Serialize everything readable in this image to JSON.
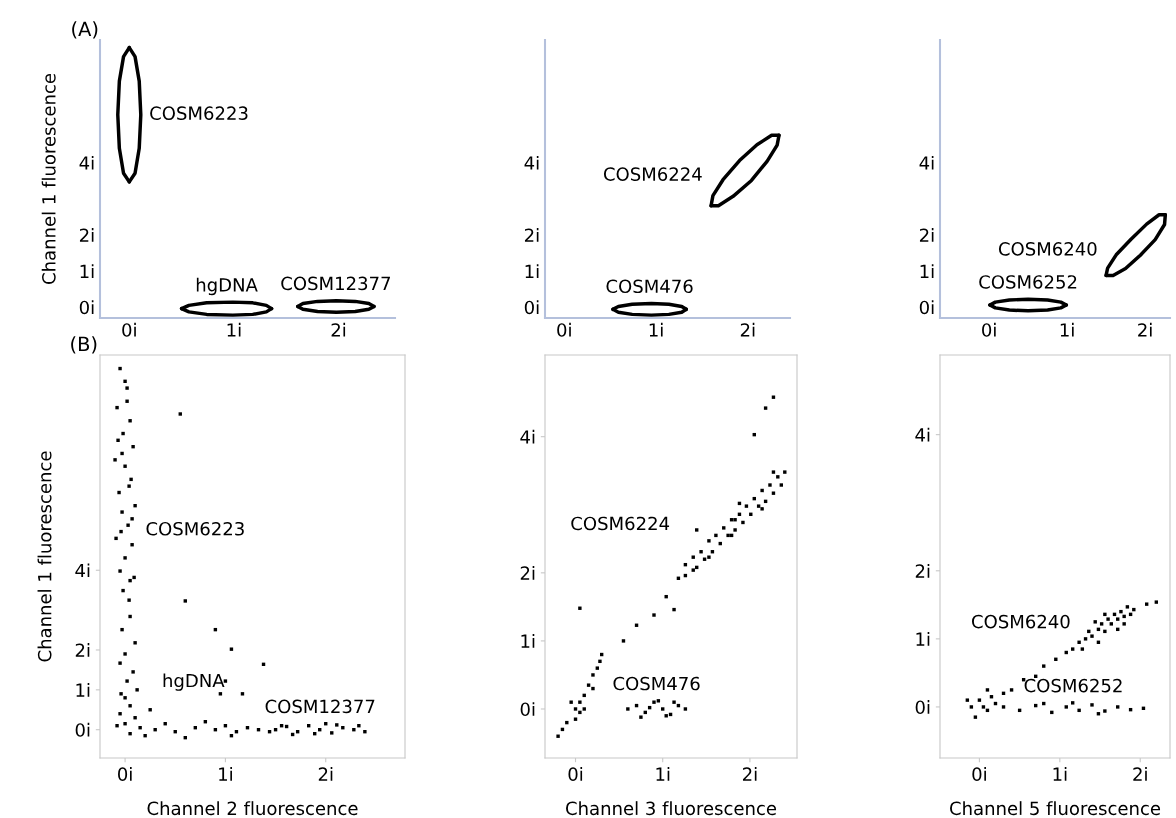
{
  "chart_data": [
    {
      "type": "line",
      "ylabel": "Channel 1 fluorescence",
      "annotations": [
        "(A)"
      ],
      "xlim": [
        -0.28,
        2.54
      ],
      "ylim": [
        -0.3,
        7.4
      ],
      "xticks": [
        {
          "value": 0,
          "label": "0i"
        },
        {
          "value": 1,
          "label": "1i"
        },
        {
          "value": 2,
          "label": "2i"
        }
      ],
      "yticks": [
        {
          "value": 0,
          "label": "0i"
        },
        {
          "value": 1,
          "label": "1i"
        },
        {
          "value": 2,
          "label": "2i"
        },
        {
          "value": 4,
          "label": "4i"
        }
      ],
      "series": [
        {
          "name": "COSM6223",
          "color": "#000000",
          "x": [
            0,
            0.055,
            0.095,
            0.11,
            0.095,
            0.055,
            0
          ],
          "values": [
            3.47,
            3.71,
            4.4,
            5.33,
            6.26,
            6.94,
            7.19
          ]
        },
        {
          "color": "#000000",
          "x": [
            0,
            -0.055,
            -0.095,
            -0.11,
            -0.095,
            -0.055,
            0
          ],
          "values": [
            7.19,
            6.94,
            6.26,
            5.33,
            4.4,
            3.71,
            3.47
          ]
        },
        {
          "name": "hgDNA",
          "color": "#000000",
          "x": [
            1.36,
            1.31,
            1.18,
            0.99,
            0.74,
            0.57,
            0.5
          ],
          "values": [
            -0.04,
            0.05,
            0.12,
            0.14,
            0.12,
            0.05,
            -0.04
          ]
        },
        {
          "color": "#000000",
          "x": [
            0.5,
            0.57,
            0.74,
            0.99,
            1.18,
            1.31,
            1.36
          ],
          "values": [
            -0.04,
            -0.13,
            -0.2,
            -0.22,
            -0.2,
            -0.13,
            -0.04
          ]
        },
        {
          "name": "COSM12377",
          "color": "#000000",
          "x": [
            2.34,
            2.29,
            2.16,
            1.98,
            1.8,
            1.66,
            1.61
          ],
          "values": [
            0.02,
            0.1,
            0.16,
            0.18,
            0.16,
            0.1,
            0.02
          ]
        },
        {
          "color": "#000000",
          "x": [
            1.61,
            1.66,
            1.8,
            1.98,
            2.16,
            2.29,
            2.34
          ],
          "values": [
            0.02,
            -0.06,
            -0.12,
            -0.14,
            -0.12,
            -0.06,
            0.02
          ]
        }
      ]
    },
    {
      "type": "line",
      "xlim": [
        -0.21,
        2.46
      ],
      "ylim": [
        -0.3,
        7.4
      ],
      "xticks": [
        {
          "value": 0,
          "label": "0i"
        },
        {
          "value": 1,
          "label": "1i"
        },
        {
          "value": 2,
          "label": "2i"
        }
      ],
      "yticks": [
        {
          "value": 0,
          "label": "0i"
        },
        {
          "value": 1,
          "label": "1i"
        },
        {
          "value": 2,
          "label": "2i"
        },
        {
          "value": 4,
          "label": "4i"
        }
      ],
      "series": [
        {
          "name": "COSM6224",
          "color": "#000000",
          "x": [
            2.34,
            2.32,
            2.21,
            2.04,
            1.84,
            1.68,
            1.6
          ],
          "values": [
            4.76,
            4.49,
            4.04,
            3.51,
            3.07,
            2.81,
            2.81
          ]
        },
        {
          "color": "#000000",
          "x": [
            1.6,
            1.62,
            1.73,
            1.91,
            2.1,
            2.26,
            2.34
          ],
          "values": [
            2.81,
            3.09,
            3.53,
            4.06,
            4.5,
            4.76,
            4.76
          ]
        },
        {
          "name": "COSM476",
          "color": "#000000",
          "x": [
            1.33,
            1.28,
            1.14,
            0.95,
            0.74,
            0.59,
            0.53
          ],
          "values": [
            -0.06,
            0.02,
            0.08,
            0.1,
            0.08,
            0.02,
            -0.06
          ]
        },
        {
          "color": "#000000",
          "x": [
            0.53,
            0.59,
            0.74,
            0.95,
            1.14,
            1.28,
            1.33
          ],
          "values": [
            -0.06,
            -0.14,
            -0.2,
            -0.22,
            -0.2,
            -0.14,
            -0.06
          ]
        }
      ]
    },
    {
      "type": "line",
      "xlim": [
        -0.63,
        2.32
      ],
      "ylim": [
        -0.3,
        7.4
      ],
      "xticks": [
        {
          "value": 0,
          "label": "0i"
        },
        {
          "value": 1,
          "label": "1i"
        },
        {
          "value": 2,
          "label": "2i"
        }
      ],
      "yticks": [
        {
          "value": 0,
          "label": "0i"
        },
        {
          "value": 1,
          "label": "1i"
        },
        {
          "value": 2,
          "label": "2i"
        },
        {
          "value": 4,
          "label": "4i"
        }
      ],
      "series": [
        {
          "name": "COSM6240",
          "color": "#000000",
          "x": [
            2.26,
            2.25,
            2.13,
            1.94,
            1.75,
            1.59,
            1.5
          ],
          "values": [
            2.56,
            2.29,
            1.87,
            1.44,
            1.07,
            0.88,
            0.88
          ]
        },
        {
          "color": "#000000",
          "x": [
            1.5,
            1.52,
            1.63,
            1.82,
            2.02,
            2.18,
            2.26
          ],
          "values": [
            0.88,
            1.08,
            1.45,
            1.88,
            2.3,
            2.56,
            2.56
          ]
        },
        {
          "name": "COSM6252",
          "color": "#000000",
          "x": [
            0.99,
            0.92,
            0.75,
            0.5,
            0.26,
            0.08,
            0.01
          ],
          "values": [
            0.06,
            0.14,
            0.2,
            0.22,
            0.2,
            0.14,
            0.06
          ]
        },
        {
          "color": "#000000",
          "x": [
            0.01,
            0.08,
            0.26,
            0.5,
            0.75,
            0.92,
            0.99
          ],
          "values": [
            0.06,
            -0.02,
            -0.08,
            -0.1,
            -0.08,
            -0.02,
            0.06
          ]
        }
      ]
    },
    {
      "type": "scatter",
      "xlabel": "Channel 2 fluorescence",
      "ylabel": "Channel 1 fluorescence",
      "annotations": [
        "(B)"
      ],
      "xlim": [
        -0.25,
        2.79
      ],
      "ylim": [
        -0.71,
        9.4
      ],
      "xticks": [
        {
          "value": 0,
          "label": "0i"
        },
        {
          "value": 1,
          "label": "1i"
        },
        {
          "value": 2,
          "label": "2i"
        }
      ],
      "yticks": [
        {
          "value": 0,
          "label": "0i"
        },
        {
          "value": 1,
          "label": "1i"
        },
        {
          "value": 2,
          "label": "2i"
        },
        {
          "value": 4,
          "label": "4i"
        }
      ],
      "series": [
        {
          "name": "COSM6223",
          "color": "#000000",
          "x": [
            -0.05,
            0.02,
            -0.08,
            0.05,
            -0.02,
            0.08,
            -0.1,
            0.0,
            0.06,
            -0.06,
            0.1,
            -0.03,
            0.03,
            -0.09,
            0.07,
            0.0,
            -0.05,
            0.05,
            -0.02,
            0.04,
            0.02,
            -0.03,
            0.04,
            -0.04,
            0.09,
            0.0,
            -0.07,
            0.07,
            0.05,
            -0.03,
            0.1,
            0.0,
            -0.05,
            0.08,
            0.02,
            0.12,
            -0.04
          ],
          "values": [
            9.06,
            8.57,
            8.08,
            7.75,
            7.43,
            7.1,
            6.77,
            6.61,
            6.28,
            5.95,
            5.62,
            5.46,
            5.13,
            4.8,
            4.64,
            4.31,
            3.98,
            3.74,
            3.49,
            3.25,
            8.24,
            6.93,
            6.11,
            4.97,
            3.82,
            8.74,
            7.26,
            5.29,
            2.84,
            2.51,
            2.18,
            1.9,
            1.67,
            1.45,
            1.22,
            1.0,
            0.9
          ]
        },
        {
          "color": "#000000",
          "x": [
            0.55,
            0.9,
            1.06,
            1.0,
            0.95,
            1.17,
            1.38,
            0.6
          ],
          "values": [
            7.92,
            2.51,
            2.02,
            1.22,
            0.9,
            0.9,
            1.64,
            3.23
          ]
        },
        {
          "name": "hgDNA",
          "color": "#000000",
          "x": [
            0,
            0.05,
            -0.05,
            0.1,
            0,
            0.15,
            0.3,
            0.5,
            0.7,
            0.9,
            1.0,
            1.11,
            1.22,
            0.2,
            0.6,
            1.06,
            0.05,
            0.4,
            0.8,
            1.33,
            1.44,
            -0.08,
            0.25
          ],
          "values": [
            0.8,
            0.6,
            0.4,
            0.3,
            0.15,
            0.05,
            0.0,
            -0.05,
            0.05,
            0.0,
            0.1,
            -0.05,
            0.05,
            -0.15,
            -0.2,
            -0.15,
            -0.1,
            0.15,
            0.2,
            0.0,
            -0.05,
            0.1,
            0.5
          ]
        },
        {
          "name": "COSM12377",
          "color": "#000000",
          "x": [
            1.5,
            1.61,
            1.72,
            1.83,
            1.94,
            2.06,
            2.17,
            2.28,
            2.39,
            1.67,
            1.89,
            2.11,
            2.33,
            1.56,
            2.0
          ],
          "values": [
            0.0,
            0.08,
            -0.05,
            0.1,
            0.0,
            -0.08,
            0.05,
            0.0,
            -0.05,
            -0.12,
            -0.1,
            0.12,
            0.1,
            0.1,
            0.15
          ]
        }
      ]
    },
    {
      "type": "scatter",
      "xlabel": "Channel 3 fluorescence",
      "xlim": [
        -0.35,
        2.54
      ],
      "ylim": [
        -0.72,
        5.2
      ],
      "xticks": [
        {
          "value": 0,
          "label": "0i"
        },
        {
          "value": 1,
          "label": "1i"
        },
        {
          "value": 2,
          "label": "2i"
        }
      ],
      "yticks": [
        {
          "value": 0,
          "label": "0i"
        },
        {
          "value": 1,
          "label": "1i"
        },
        {
          "value": 2,
          "label": "2i"
        },
        {
          "value": 4,
          "label": "4i"
        }
      ],
      "series": [
        {
          "name": "COSM6224",
          "color": "#000000",
          "x": [
            1.18,
            1.26,
            1.26,
            1.35,
            1.39,
            1.44,
            1.48,
            1.53,
            1.57,
            1.61,
            1.66,
            1.7,
            1.75,
            1.79,
            1.83,
            1.88,
            1.92,
            1.96,
            2.01,
            2.05,
            2.1,
            2.14,
            2.18,
            2.23,
            2.27,
            2.32,
            2.36,
            2.4,
            1.53,
            1.88,
            2.14,
            1.79,
            2.27,
            1.35
          ],
          "values": [
            1.92,
            2.12,
            1.96,
            2.23,
            2.08,
            2.31,
            2.2,
            2.47,
            2.31,
            2.55,
            2.43,
            2.66,
            2.55,
            2.78,
            2.63,
            2.86,
            2.74,
            2.98,
            2.86,
            3.09,
            2.98,
            3.21,
            3.05,
            3.29,
            3.17,
            3.41,
            3.29,
            3.48,
            2.23,
            3.02,
            2.94,
            2.55,
            3.48,
            2.04
          ]
        },
        {
          "color": "#000000",
          "x": [
            2.05,
            2.18,
            2.27,
            1.39,
            1.83,
            1.04,
            1.13,
            0.9,
            0.7,
            0.55,
            0.05
          ],
          "values": [
            4.03,
            4.42,
            4.58,
            2.63,
            2.78,
            1.65,
            1.46,
            1.38,
            1.23,
            1.0,
            1.48
          ]
        },
        {
          "color": "#000000",
          "x": [
            -0.2,
            -0.1,
            0.0,
            0.05,
            0.1,
            0.15,
            0.2,
            0.25,
            0.3,
            0.0,
            -0.05,
            0.1,
            0.2,
            -0.15,
            0.28,
            0.05
          ],
          "values": [
            -0.4,
            -0.2,
            0.0,
            0.1,
            0.2,
            0.35,
            0.5,
            0.6,
            0.8,
            -0.15,
            0.1,
            0.0,
            0.3,
            -0.3,
            0.7,
            -0.05
          ]
        },
        {
          "name": "COSM476",
          "color": "#000000",
          "x": [
            0.6,
            0.7,
            0.8,
            0.9,
            1.0,
            1.09,
            1.18,
            1.26,
            0.75,
            0.95,
            1.13,
            0.85,
            1.04
          ],
          "values": [
            0.0,
            0.05,
            -0.05,
            0.1,
            0.0,
            -0.08,
            0.05,
            0.0,
            -0.12,
            0.12,
            0.1,
            0.02,
            -0.1
          ]
        }
      ]
    },
    {
      "type": "scatter",
      "xlabel": "Channel 5 fluorescence",
      "xlim": [
        -0.49,
        2.37
      ],
      "ylim": [
        -0.75,
        5.17
      ],
      "xticks": [
        {
          "value": 0,
          "label": "0i"
        },
        {
          "value": 1,
          "label": "1i"
        },
        {
          "value": 2,
          "label": "2i"
        }
      ],
      "yticks": [
        {
          "value": 0,
          "label": "0i"
        },
        {
          "value": 1,
          "label": "1i"
        },
        {
          "value": 2,
          "label": "2i"
        },
        {
          "value": 4,
          "label": "4i"
        }
      ],
      "series": [
        {
          "name": "COSM6240",
          "color": "#000000",
          "x": [
            1.24,
            1.32,
            1.36,
            1.4,
            1.48,
            1.52,
            1.56,
            1.6,
            1.64,
            1.68,
            1.72,
            1.76,
            1.8,
            1.84,
            1.88,
            1.92,
            1.44,
            1.56,
            1.72,
            1.48,
            1.8,
            1.28,
            2.08,
            2.2
          ],
          "values": [
            0.95,
            1.0,
            1.11,
            1.04,
            1.14,
            1.22,
            1.11,
            1.29,
            1.22,
            1.36,
            1.29,
            1.4,
            1.33,
            1.47,
            1.36,
            1.43,
            1.25,
            1.36,
            1.14,
            0.95,
            1.22,
            0.85,
            1.51,
            1.54
          ]
        },
        {
          "color": "#000000",
          "x": [
            0.4,
            0.55,
            0.7,
            0.8,
            0.95,
            1.08,
            1.16,
            0.3
          ],
          "values": [
            0.25,
            0.4,
            0.45,
            0.6,
            0.7,
            0.8,
            0.85,
            0.2
          ]
        },
        {
          "color": "#000000",
          "x": [
            -0.1,
            0.0,
            0.1,
            0.15,
            -0.05,
            0.05,
            0.2,
            -0.15,
            0.1
          ],
          "values": [
            0.0,
            0.1,
            -0.05,
            0.15,
            -0.15,
            0.0,
            0.05,
            0.1,
            0.25
          ]
        },
        {
          "name": "COSM6252",
          "color": "#000000",
          "x": [
            0.3,
            0.5,
            0.7,
            0.9,
            1.08,
            1.24,
            1.4,
            1.56,
            1.72,
            1.88,
            2.04,
            1.16,
            1.48,
            0.8
          ],
          "values": [
            0.0,
            -0.05,
            0.02,
            -0.08,
            0.0,
            -0.05,
            0.03,
            -0.06,
            0.0,
            -0.04,
            -0.02,
            0.06,
            -0.1,
            0.05
          ]
        }
      ]
    }
  ]
}
